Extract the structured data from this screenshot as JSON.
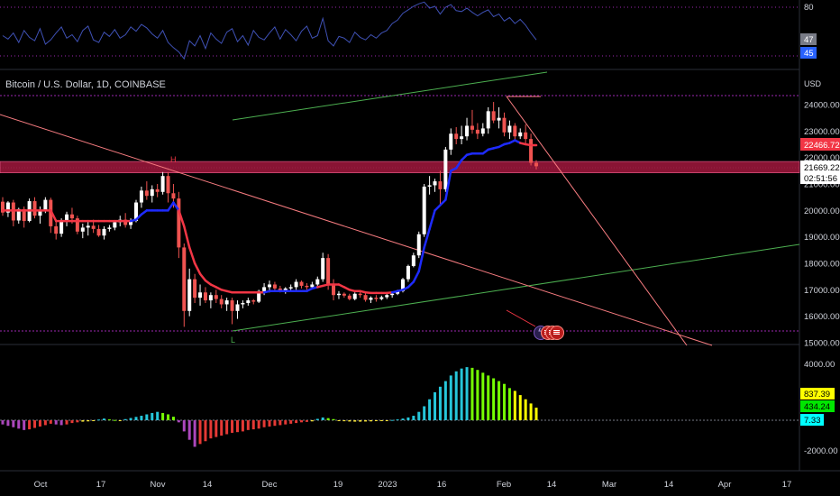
{
  "chart_title": "Bitcoin / U.S. Dollar, 1D, COINBASE",
  "currency": "USD",
  "x_axis": {
    "ticks": [
      "Oct",
      "17",
      "Nov",
      "14",
      "Dec",
      "19",
      "2023",
      "16",
      "Feb",
      "14",
      "Mar",
      "14",
      "Apr",
      "17"
    ]
  },
  "indicators": {
    "rsi_panel": {
      "level": "80",
      "value_tags": [
        {
          "value": "47",
          "bg": "#787b86"
        },
        {
          "value": "45",
          "bg": "#2962ff"
        }
      ]
    },
    "histogram_panel": {
      "ticks": [
        "4000.00",
        "-2000.00"
      ],
      "value_tags": [
        {
          "value": "837.39",
          "bg": "#ffff00"
        },
        {
          "value": "434.24",
          "bg": "#00e600"
        },
        {
          "value": "7.33",
          "bg": "#00ffff"
        }
      ]
    }
  },
  "markers": {
    "pivot_high_label": "H",
    "pivot_low_label": "L"
  },
  "events": [
    {
      "name": "lightning-event",
      "glyph": "ϟ"
    },
    {
      "name": "us-flag-event"
    },
    {
      "name": "us-flag-event"
    },
    {
      "name": "us-flag-event"
    }
  ],
  "chart_data": {
    "type": "candlestick",
    "y_ticks": [
      "24000.00",
      "23000.00",
      "22000.00",
      "21000.00",
      "20000.00",
      "19000.00",
      "18000.00",
      "17000.00",
      "16000.00",
      "15000.00"
    ],
    "ylim": [
      15000,
      24800
    ],
    "price_tags": [
      {
        "value": "22466.72",
        "bg": "#f23645",
        "fg": "#ffffff"
      },
      {
        "value": "21669.22",
        "bg": "#ffffff",
        "fg": "#000000"
      },
      {
        "value": "02:51:56",
        "bg": "#ffffff",
        "fg": "#000000"
      }
    ],
    "colors": {
      "up": "#ffffff",
      "down": "#ef5350",
      "trend_up": "#1e2bff",
      "trend_down": "#f23645",
      "zone": "#a1173d",
      "trendline_red": "#f77c80",
      "trendline_green": "#4caf50"
    },
    "candles": [
      [
        20330,
        20500,
        19800,
        19920
      ],
      [
        19920,
        20350,
        19750,
        20300
      ],
      [
        20300,
        20400,
        19400,
        19620
      ],
      [
        19620,
        20100,
        19500,
        20050
      ],
      [
        20050,
        20150,
        19350,
        19600
      ],
      [
        19600,
        20450,
        19550,
        20350
      ],
      [
        20350,
        20500,
        19700,
        19800
      ],
      [
        19800,
        20150,
        19500,
        20000
      ],
      [
        20000,
        20500,
        19900,
        20400
      ],
      [
        20400,
        20480,
        19150,
        19400
      ],
      [
        19400,
        19600,
        18900,
        19120
      ],
      [
        19120,
        19700,
        19000,
        19600
      ],
      [
        19600,
        19950,
        19400,
        19850
      ],
      [
        19850,
        20100,
        19500,
        19700
      ],
      [
        19700,
        19800,
        19100,
        19200
      ],
      [
        19200,
        19500,
        18950,
        19350
      ],
      [
        19350,
        19600,
        19050,
        19420
      ],
      [
        19420,
        19650,
        19150,
        19300
      ],
      [
        19300,
        19450,
        19000,
        19050
      ],
      [
        19050,
        19400,
        18900,
        19300
      ],
      [
        19300,
        19450,
        19200,
        19350
      ],
      [
        19350,
        19600,
        19250,
        19550
      ],
      [
        19550,
        19800,
        19400,
        19650
      ],
      [
        19650,
        19900,
        19350,
        19450
      ],
      [
        19450,
        19700,
        19300,
        19600
      ],
      [
        19600,
        20400,
        19550,
        20300
      ],
      [
        20300,
        20900,
        20100,
        20750
      ],
      [
        20750,
        21100,
        20400,
        20550
      ],
      [
        20550,
        20950,
        20300,
        20800
      ],
      [
        20800,
        21000,
        20500,
        20700
      ],
      [
        20700,
        21450,
        20600,
        21300
      ],
      [
        21300,
        21450,
        20300,
        20650
      ],
      [
        20650,
        21000,
        20100,
        20450
      ],
      [
        20450,
        20700,
        18200,
        18600
      ],
      [
        18600,
        18750,
        15600,
        16200
      ],
      [
        16200,
        17800,
        16000,
        17400
      ],
      [
        17400,
        17600,
        16500,
        16700
      ],
      [
        16700,
        17200,
        16400,
        16900
      ],
      [
        16900,
        17100,
        16500,
        16600
      ],
      [
        16600,
        16900,
        16300,
        16800
      ],
      [
        16800,
        17000,
        16500,
        16650
      ],
      [
        16650,
        16800,
        16300,
        16450
      ],
      [
        16450,
        16700,
        16200,
        16600
      ],
      [
        16600,
        16700,
        15700,
        16200
      ],
      [
        16200,
        16600,
        15900,
        16450
      ],
      [
        16450,
        16600,
        16300,
        16500
      ],
      [
        16500,
        16700,
        16400,
        16600
      ],
      [
        16600,
        16650,
        16450,
        16550
      ],
      [
        16550,
        17000,
        16500,
        16950
      ],
      [
        16950,
        17250,
        16800,
        17100
      ],
      [
        17100,
        17350,
        16900,
        17200
      ],
      [
        17200,
        17300,
        16950,
        17050
      ],
      [
        17050,
        17150,
        16900,
        16980
      ],
      [
        16980,
        17100,
        16850,
        17050
      ],
      [
        17050,
        17200,
        16950,
        17100
      ],
      [
        17100,
        17400,
        17000,
        17300
      ],
      [
        17300,
        17350,
        17050,
        17150
      ],
      [
        17150,
        17250,
        17000,
        17100
      ],
      [
        17100,
        17300,
        17050,
        17200
      ],
      [
        17200,
        17500,
        17150,
        17400
      ],
      [
        17400,
        18400,
        17300,
        18200
      ],
      [
        18200,
        18350,
        17000,
        17200
      ],
      [
        17200,
        17400,
        16600,
        16800
      ],
      [
        16800,
        16950,
        16650,
        16850
      ],
      [
        16850,
        16900,
        16700,
        16780
      ],
      [
        16780,
        16850,
        16600,
        16650
      ],
      [
        16650,
        16900,
        16600,
        16850
      ],
      [
        16850,
        16950,
        16700,
        16800
      ],
      [
        16800,
        16880,
        16550,
        16620
      ],
      [
        16620,
        16750,
        16500,
        16700
      ],
      [
        16700,
        16800,
        16550,
        16650
      ],
      [
        16650,
        16780,
        16600,
        16720
      ],
      [
        16720,
        16850,
        16650,
        16800
      ],
      [
        16800,
        16900,
        16700,
        16850
      ],
      [
        16850,
        17000,
        16800,
        16950
      ],
      [
        16950,
        17450,
        16900,
        17400
      ],
      [
        17400,
        17950,
        17300,
        17900
      ],
      [
        17900,
        18400,
        17850,
        18300
      ],
      [
        18300,
        19200,
        18200,
        19100
      ],
      [
        19100,
        21000,
        19000,
        20900
      ],
      [
        20900,
        21300,
        20600,
        20950
      ],
      [
        20950,
        21200,
        20700,
        21100
      ],
      [
        21100,
        21500,
        20200,
        20800
      ],
      [
        20800,
        22400,
        20700,
        22300
      ],
      [
        22300,
        23100,
        22100,
        22900
      ],
      [
        22900,
        23150,
        22500,
        22700
      ],
      [
        22700,
        23200,
        22500,
        22800
      ],
      [
        22800,
        23500,
        22650,
        23200
      ],
      [
        23200,
        23800,
        22900,
        23050
      ],
      [
        23050,
        23300,
        22700,
        22900
      ],
      [
        22900,
        23300,
        22800,
        23100
      ],
      [
        23100,
        23900,
        22900,
        23750
      ],
      [
        23750,
        24100,
        23300,
        23400
      ],
      [
        23400,
        23900,
        23100,
        23500
      ],
      [
        23500,
        23700,
        22800,
        22950
      ],
      [
        22950,
        23400,
        22700,
        23200
      ],
      [
        23200,
        23300,
        22600,
        22800
      ],
      [
        22800,
        23100,
        22700,
        22950
      ],
      [
        22950,
        23250,
        22500,
        22700
      ],
      [
        22700,
        22900,
        21700,
        21800
      ],
      [
        21800,
        21900,
        21550,
        21669
      ]
    ],
    "trend_line": [
      20000,
      20000,
      20000,
      20000,
      20000,
      20000,
      20000,
      20000,
      20000,
      20000,
      19600,
      19600,
      19600,
      19600,
      19600,
      19600,
      19600,
      19600,
      19600,
      19600,
      19600,
      19600,
      19600,
      19600,
      19600,
      19650,
      19850,
      20000,
      20000,
      20000,
      20000,
      20000,
      20300,
      20000,
      19400,
      18600,
      18000,
      17600,
      17350,
      17200,
      17100,
      17000,
      16950,
      16900,
      16900,
      16900,
      16900,
      16900,
      16900,
      16900,
      16950,
      16950,
      16950,
      16950,
      16950,
      16950,
      16950,
      16950,
      17050,
      17100,
      17150,
      17200,
      17200,
      17200,
      17100,
      17000,
      16950,
      16950,
      16900,
      16880,
      16880,
      16880,
      16880,
      16900,
      16950,
      17000,
      17100,
      17300,
      17700,
      18600,
      19300,
      20000,
      20200,
      20400,
      21500,
      21600,
      21900,
      22100,
      22150,
      22150,
      22150,
      22300,
      22350,
      22400,
      22500,
      22550,
      22650,
      22550,
      22500,
      22466,
      22466
    ],
    "trend_line_regime": [
      "down",
      "down",
      "down",
      "down",
      "down",
      "down",
      "down",
      "down",
      "down",
      "down",
      "down",
      "down",
      "down",
      "down",
      "down",
      "down",
      "down",
      "down",
      "down",
      "down",
      "down",
      "down",
      "down",
      "down",
      "up",
      "up",
      "up",
      "up",
      "up",
      "up",
      "up",
      "up",
      "up",
      "down",
      "down",
      "down",
      "down",
      "down",
      "down",
      "down",
      "down",
      "down",
      "down",
      "down",
      "down",
      "down",
      "down",
      "down",
      "down",
      "up",
      "up",
      "up",
      "up",
      "up",
      "up",
      "up",
      "up",
      "up",
      "up",
      "down",
      "down",
      "down",
      "down",
      "down",
      "down",
      "down",
      "down",
      "down",
      "down",
      "down",
      "down",
      "down",
      "down",
      "up",
      "up",
      "up",
      "up",
      "up",
      "up",
      "up",
      "up",
      "up",
      "up",
      "up",
      "up",
      "up",
      "up",
      "up",
      "up",
      "up",
      "up",
      "up",
      "up",
      "up",
      "up",
      "up",
      "up",
      "down",
      "down",
      "down",
      "down"
    ],
    "zone": {
      "top": 21850,
      "bottom": 21420
    },
    "histogram": [
      -300,
      -400,
      -500,
      -600,
      -700,
      -650,
      -550,
      -450,
      -350,
      -250,
      -300,
      -350,
      -300,
      -200,
      -150,
      -100,
      -80,
      -60,
      50,
      120,
      60,
      20,
      -40,
      80,
      160,
      240,
      320,
      420,
      520,
      600,
      520,
      420,
      250,
      -150,
      -800,
      -1400,
      -1900,
      -1700,
      -1500,
      -1300,
      -1200,
      -1100,
      -1000,
      -900,
      -850,
      -800,
      -700,
      -650,
      -600,
      -500,
      -450,
      -400,
      -350,
      -300,
      -250,
      -200,
      -150,
      -120,
      -80,
      100,
      200,
      150,
      80,
      -40,
      -70,
      -90,
      -100,
      -100,
      -90,
      -80,
      -60,
      -40,
      -20,
      20,
      60,
      120,
      200,
      320,
      600,
      1000,
      1500,
      2000,
      2400,
      2800,
      3200,
      3500,
      3700,
      3800,
      3750,
      3600,
      3400,
      3200,
      3000,
      2800,
      2600,
      2300,
      2100,
      1800,
      1500,
      1200,
      900
    ],
    "rsi": [
      52,
      48,
      55,
      44,
      58,
      50,
      46,
      60,
      42,
      47,
      55,
      62,
      49,
      53,
      45,
      58,
      63,
      47,
      44,
      56,
      51,
      59,
      49,
      53,
      62,
      57,
      65,
      61,
      54,
      49,
      58,
      44,
      38,
      33,
      25,
      46,
      40,
      52,
      37,
      55,
      48,
      43,
      56,
      60,
      45,
      52,
      41,
      58,
      50,
      47,
      55,
      62,
      48,
      59,
      53,
      46,
      57,
      63,
      49,
      52,
      72,
      46,
      40,
      51,
      49,
      44,
      56,
      50,
      47,
      53,
      49,
      55,
      58,
      66,
      70,
      78,
      82,
      86,
      89,
      91,
      84,
      86,
      77,
      85,
      88,
      81,
      80,
      84,
      79,
      75,
      79,
      82,
      74,
      77,
      69,
      73,
      66,
      71,
      64,
      55,
      47
    ]
  }
}
